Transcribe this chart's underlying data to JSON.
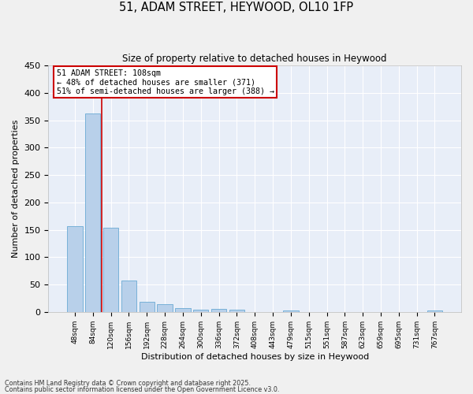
{
  "title_line1": "51, ADAM STREET, HEYWOOD, OL10 1FP",
  "title_line2": "Size of property relative to detached houses in Heywood",
  "xlabel": "Distribution of detached houses by size in Heywood",
  "ylabel": "Number of detached properties",
  "categories": [
    "48sqm",
    "84sqm",
    "120sqm",
    "156sqm",
    "192sqm",
    "228sqm",
    "264sqm",
    "300sqm",
    "336sqm",
    "372sqm",
    "408sqm",
    "443sqm",
    "479sqm",
    "515sqm",
    "551sqm",
    "587sqm",
    "623sqm",
    "659sqm",
    "695sqm",
    "731sqm",
    "767sqm"
  ],
  "values": [
    157,
    363,
    153,
    57,
    18,
    14,
    7,
    4,
    5,
    4,
    0,
    0,
    2,
    0,
    0,
    0,
    0,
    0,
    0,
    0,
    2
  ],
  "bar_color": "#b8d0ea",
  "bar_edge_color": "#6aaad4",
  "background_color": "#e8eef8",
  "grid_color": "#ffffff",
  "vline_position": 1.5,
  "vline_color": "#cc0000",
  "annotation_text": "51 ADAM STREET: 108sqm\n← 48% of detached houses are smaller (371)\n51% of semi-detached houses are larger (388) →",
  "annotation_box_edgecolor": "#cc0000",
  "footer_line1": "Contains HM Land Registry data © Crown copyright and database right 2025.",
  "footer_line2": "Contains public sector information licensed under the Open Government Licence v3.0.",
  "ylim": [
    0,
    450
  ],
  "yticks": [
    0,
    50,
    100,
    150,
    200,
    250,
    300,
    350,
    400,
    450
  ]
}
